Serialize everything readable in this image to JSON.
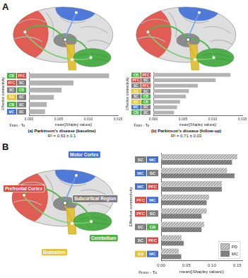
{
  "panel_labels": [
    "A",
    "B"
  ],
  "regions": {
    "PFC": "#e0463c",
    "MC": "#3f6fd6",
    "SC": "#7d7d7d",
    "CB": "#4eae4a",
    "BS": "#e2c23a"
  },
  "brain_labels": [
    {
      "text": "Motor Cortex",
      "region": "MC"
    },
    {
      "text": "Prefrontal Cortex",
      "region": "PFC"
    },
    {
      "text": "Subcortical Region",
      "region": "SC"
    },
    {
      "text": "Cerebellum",
      "region": "CB"
    },
    {
      "text": "Brainstem",
      "region": "BS"
    }
  ],
  "chart_data": [
    {
      "type": "bar",
      "orientation": "horizontal",
      "title": "(a) Parkinson's disease (baseline)",
      "subtitle": "R² = 0.63 ± 0.1",
      "x_label": "mean(|Shapley values|)",
      "y_label": "Effective connectivity",
      "annotation": "From - To",
      "categories": [
        [
          "CB",
          "PFC"
        ],
        [
          "PFC",
          "SC"
        ],
        [
          "SC",
          "CB"
        ],
        [
          "BS",
          "SC"
        ],
        [
          "CB",
          "SC"
        ],
        [
          "MC",
          "SC"
        ]
      ],
      "values": [
        0.0135,
        0.0075,
        0.0055,
        0.0042,
        0.003,
        0.0027
      ],
      "color": "#b3b3b3",
      "xlim": [
        0,
        0.015
      ],
      "xticks": [
        {
          "value": 0,
          "label": "0.000"
        },
        {
          "value": 0.005,
          "label": "0.005"
        },
        {
          "value": 0.01,
          "label": "0.010"
        },
        {
          "value": 0.015,
          "label": "0.015"
        }
      ],
      "grid": false
    },
    {
      "type": "bar",
      "orientation": "horizontal",
      "title": "(b) Parkinson's disease (follow-up)",
      "subtitle": "R² = 0.71 ± 0.03",
      "x_label": "mean(|Shapley values|)",
      "y_label": "Effective connectivity",
      "annotation": "From - To",
      "categories": [
        [
          "CB",
          "PFC"
        ],
        [
          "PFC",
          "SC"
        ],
        [
          "SC",
          "PFC"
        ],
        [
          "BS",
          "SC"
        ],
        [
          "SC",
          "CB"
        ],
        [
          "BS",
          "CB"
        ],
        [
          "MC",
          "SC"
        ],
        [
          "CB",
          "SC"
        ]
      ],
      "values": [
        0.013,
        0.0105,
        0.0075,
        0.006,
        0.0055,
        0.0045,
        0.004,
        0.0035
      ],
      "color": "#b3b3b3",
      "xlim": [
        0,
        0.015
      ],
      "xticks": [
        {
          "value": 0,
          "label": "0.000"
        },
        {
          "value": 0.005,
          "label": "0.005"
        },
        {
          "value": 0.01,
          "label": "0.010"
        },
        {
          "value": 0.015,
          "label": "0.015"
        }
      ],
      "grid": false
    },
    {
      "type": "bar",
      "orientation": "horizontal",
      "x_label": "mean(|Shapley values|)",
      "y_label": "Effective connectivity",
      "annotation": "From - To",
      "categories": [
        [
          "SC",
          "MC"
        ],
        [
          "MC",
          "SC"
        ],
        [
          "MC",
          "PFC"
        ],
        [
          "PFC",
          "MC"
        ],
        [
          "PFC",
          "SC"
        ],
        [
          "SC",
          "CB"
        ],
        [
          "SC",
          "PFC"
        ],
        [
          "BS",
          "MC"
        ]
      ],
      "series": [
        {
          "name": "PD",
          "color": "#cfcfcf",
          "values": [
            0.15,
            0.13,
            0.12,
            0.095,
            0.09,
            0.085,
            0.04,
            0.035
          ]
        },
        {
          "name": "MC",
          "color": "#8c8c8c",
          "values": [
            0.14,
            0.145,
            0.12,
            0.09,
            0.08,
            0.08,
            0.045,
            0.04
          ]
        }
      ],
      "xlim": [
        0,
        0.16
      ],
      "xticks": [
        {
          "value": 0,
          "label": "0.00"
        },
        {
          "value": 0.05,
          "label": "0.05"
        },
        {
          "value": 0.1,
          "label": "0.10"
        },
        {
          "value": 0.15,
          "label": "0.15"
        }
      ],
      "legend": "lower right",
      "grid": false
    }
  ]
}
